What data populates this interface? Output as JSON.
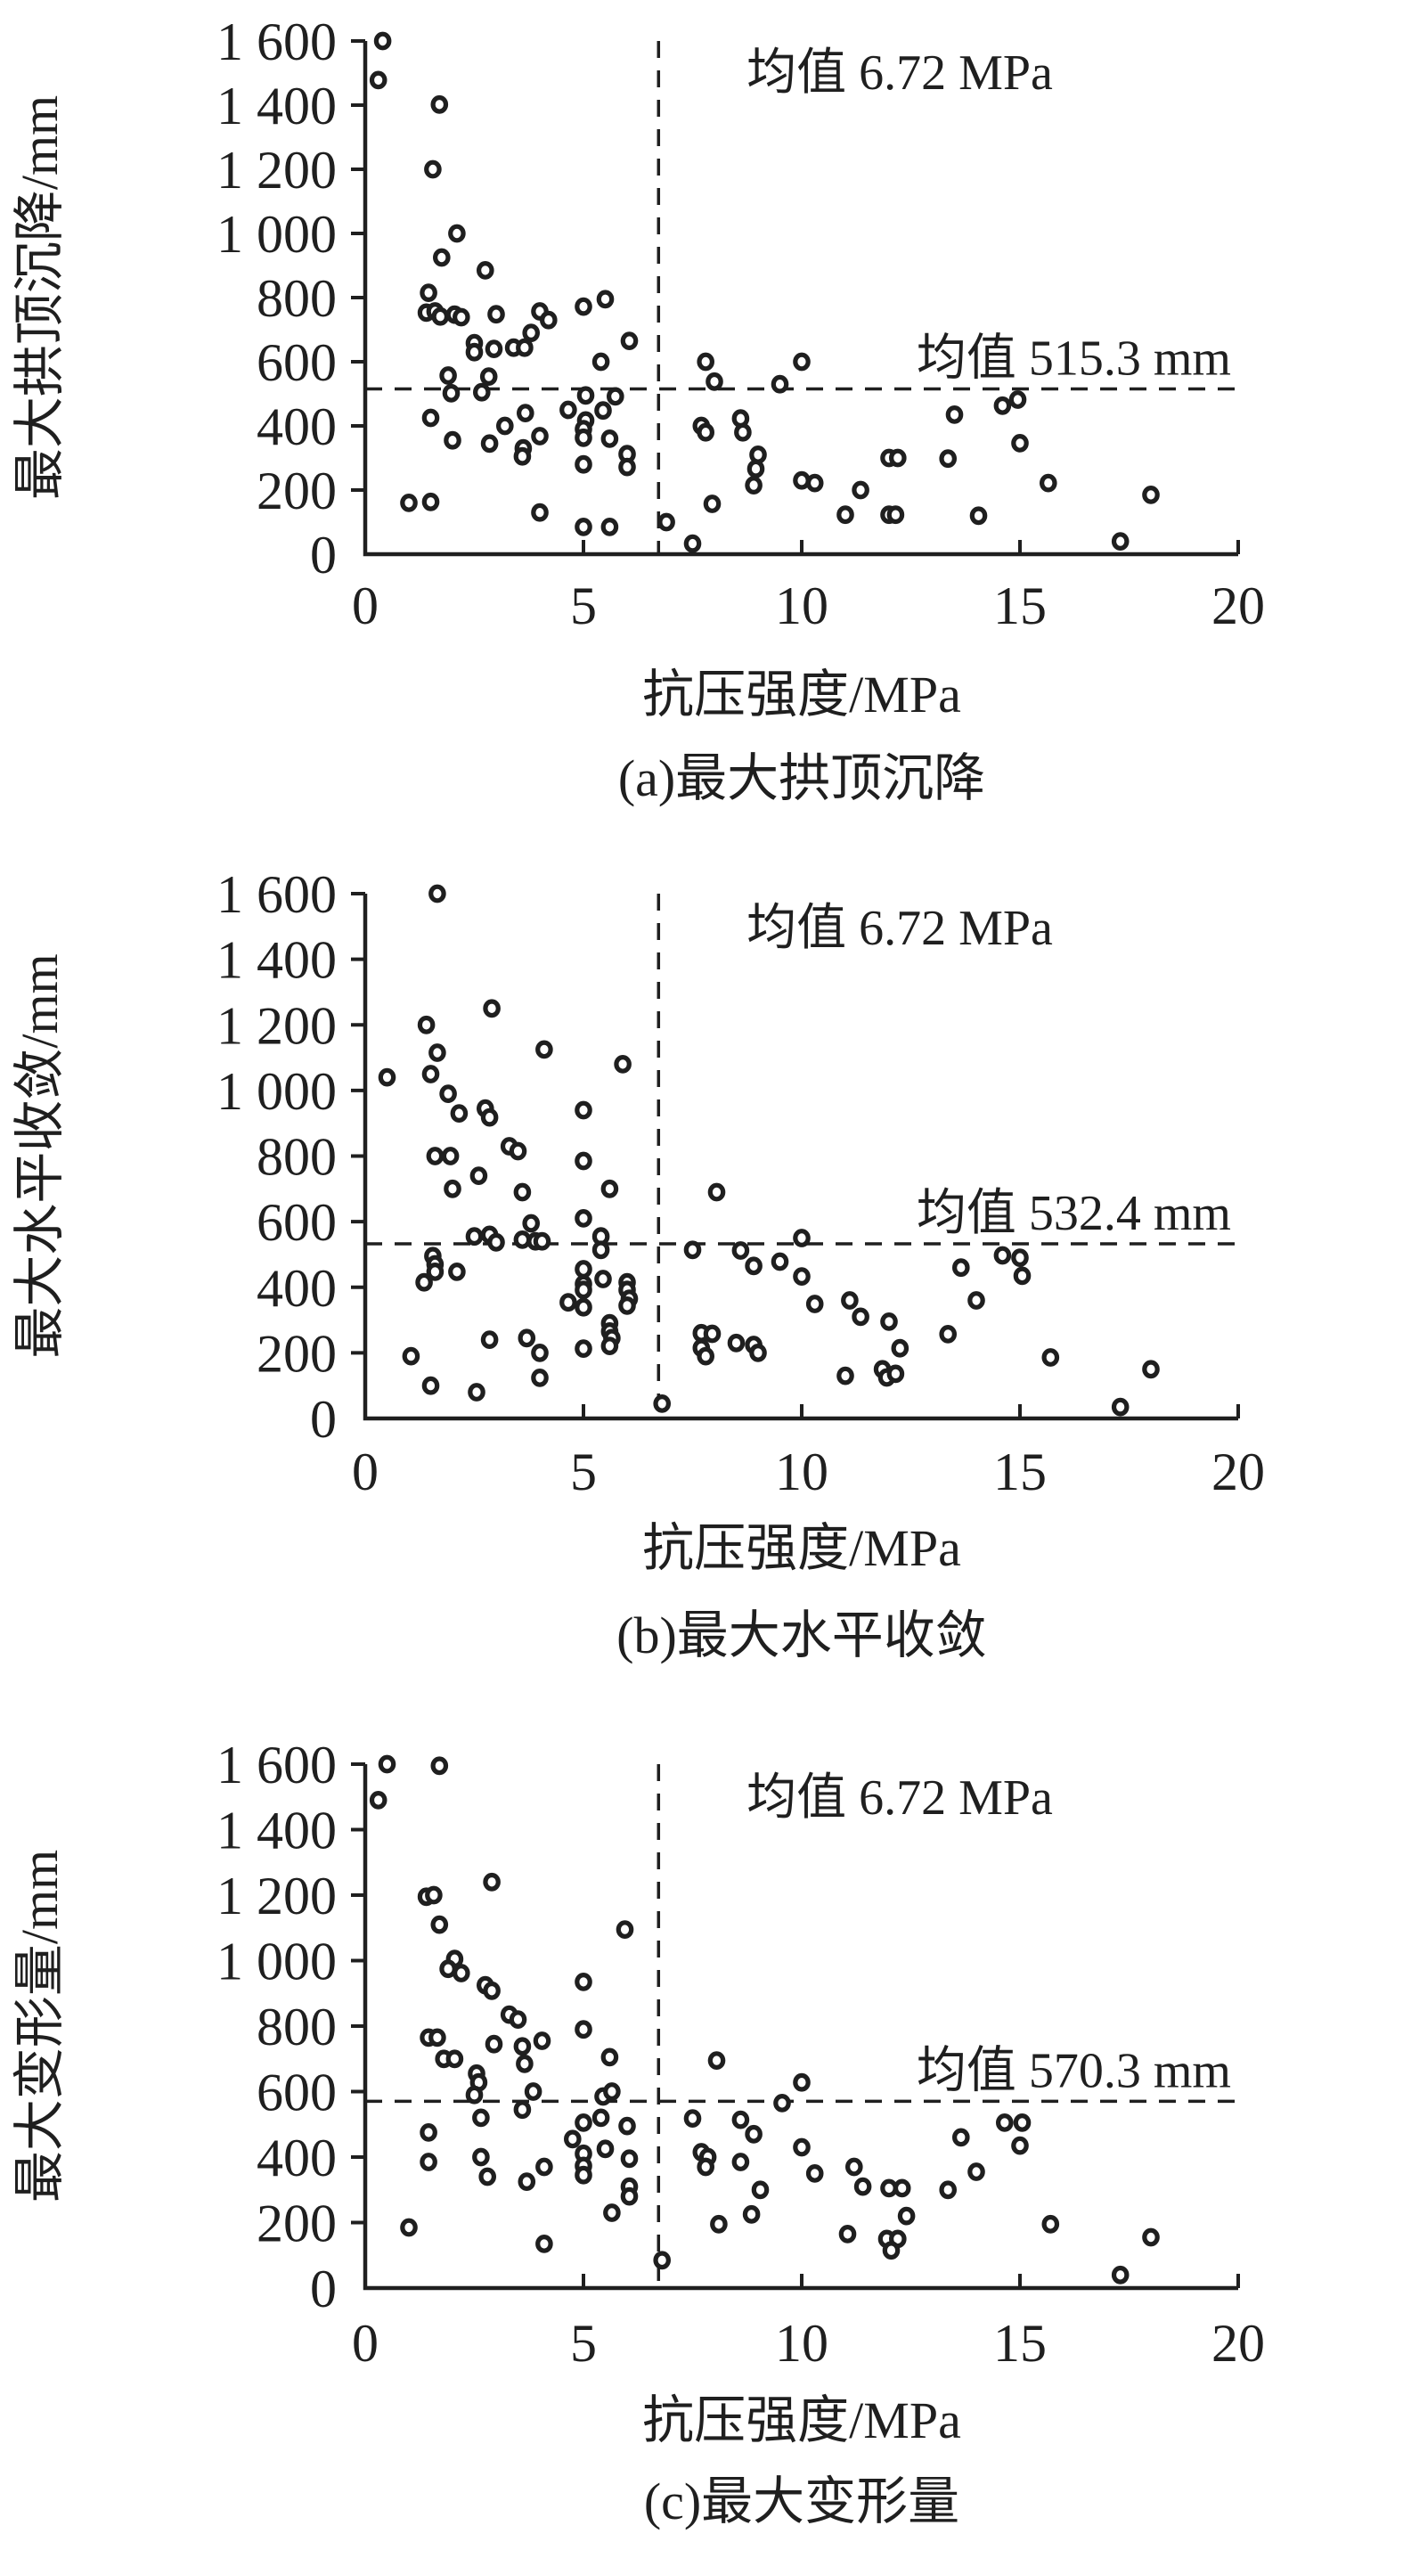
{
  "figure": {
    "background": "#ffffff",
    "ink_color": "#1f1f1f"
  },
  "chart_data": {
    "type": "scatter",
    "shared": {
      "xlabel": "抗压强度/MPa",
      "xlim": [
        0,
        20
      ],
      "ylim": [
        0,
        1600
      ],
      "xticks": [
        {
          "v": 0,
          "label": "0"
        },
        {
          "v": 5,
          "label": "5"
        },
        {
          "v": 10,
          "label": "10"
        },
        {
          "v": 15,
          "label": "15"
        },
        {
          "v": 20,
          "label": "20"
        }
      ],
      "yticks": [
        {
          "v": 0,
          "label": "0"
        },
        {
          "v": 200,
          "label": "200"
        },
        {
          "v": 400,
          "label": "400"
        },
        {
          "v": 600,
          "label": "600"
        },
        {
          "v": 800,
          "label": "800"
        },
        {
          "v": 1000,
          "label": "1 000"
        },
        {
          "v": 1200,
          "label": "1 200"
        },
        {
          "v": 1400,
          "label": "1 400"
        },
        {
          "v": 1600,
          "label": "1 600"
        }
      ],
      "mean_x": {
        "value": 6.72,
        "label": "均值 6.72 MPa"
      },
      "marker": "open-circle",
      "grid": false,
      "legend": "none"
    },
    "panels": [
      {
        "id": "a",
        "caption": "(a)最大拱顶沉降",
        "ylabel": "最大拱顶沉降/mm",
        "mean_y": {
          "value": 515.3,
          "label": "均值 515.3 mm"
        },
        "points": [
          [
            0.4,
            1600
          ],
          [
            0.3,
            1478
          ],
          [
            1.7,
            1402
          ],
          [
            1.55,
            1200
          ],
          [
            2.1,
            1000
          ],
          [
            1.75,
            925
          ],
          [
            2.75,
            885
          ],
          [
            1.45,
            815
          ],
          [
            1.4,
            753
          ],
          [
            1.6,
            757
          ],
          [
            1.72,
            741
          ],
          [
            2.05,
            747
          ],
          [
            2.2,
            739
          ],
          [
            3.0,
            748
          ],
          [
            4.0,
            757
          ],
          [
            4.2,
            730
          ],
          [
            5.0,
            772
          ],
          [
            5.5,
            795
          ],
          [
            3.8,
            690
          ],
          [
            2.5,
            658
          ],
          [
            2.5,
            630
          ],
          [
            2.95,
            640
          ],
          [
            3.4,
            644
          ],
          [
            3.65,
            644
          ],
          [
            5.4,
            600
          ],
          [
            6.05,
            665
          ],
          [
            1.9,
            557
          ],
          [
            2.83,
            554
          ],
          [
            1.97,
            502
          ],
          [
            2.67,
            505
          ],
          [
            5.05,
            495
          ],
          [
            5.73,
            492
          ],
          [
            1.5,
            425
          ],
          [
            3.2,
            400
          ],
          [
            3.67,
            440
          ],
          [
            4.0,
            368
          ],
          [
            2.0,
            355
          ],
          [
            2.85,
            345
          ],
          [
            3.62,
            330
          ],
          [
            3.6,
            305
          ],
          [
            4.65,
            450
          ],
          [
            5.45,
            448
          ],
          [
            5.05,
            417
          ],
          [
            5.0,
            390
          ],
          [
            5.0,
            363
          ],
          [
            5.6,
            360
          ],
          [
            6.0,
            312
          ],
          [
            5.0,
            280
          ],
          [
            6.0,
            272
          ],
          [
            1.0,
            160
          ],
          [
            1.5,
            163
          ],
          [
            4.0,
            130
          ],
          [
            5.0,
            85
          ],
          [
            5.6,
            85
          ],
          [
            6.9,
            100
          ],
          [
            7.5,
            33
          ],
          [
            7.8,
            600
          ],
          [
            8.0,
            538
          ],
          [
            9.5,
            530
          ],
          [
            10.0,
            600
          ],
          [
            7.7,
            400
          ],
          [
            7.8,
            380
          ],
          [
            8.6,
            423
          ],
          [
            8.65,
            380
          ],
          [
            9.0,
            310
          ],
          [
            8.95,
            266
          ],
          [
            8.9,
            215
          ],
          [
            7.95,
            157
          ],
          [
            10.0,
            230
          ],
          [
            10.3,
            222
          ],
          [
            11.0,
            123
          ],
          [
            11.35,
            200
          ],
          [
            12.0,
            300
          ],
          [
            12.2,
            300
          ],
          [
            12.0,
            123
          ],
          [
            12.15,
            123
          ],
          [
            14.05,
            120
          ],
          [
            13.35,
            298
          ],
          [
            13.5,
            435
          ],
          [
            14.6,
            463
          ],
          [
            14.95,
            482
          ],
          [
            15.0,
            346
          ],
          [
            15.65,
            222
          ],
          [
            17.3,
            40
          ],
          [
            18.0,
            185
          ]
        ]
      },
      {
        "id": "b",
        "caption": "(b)最大水平收敛",
        "ylabel": "最大水平收敛/mm",
        "mean_y": {
          "value": 532.4,
          "label": "均值 532.4 mm"
        },
        "points": [
          [
            1.65,
            1600
          ],
          [
            2.9,
            1250
          ],
          [
            1.4,
            1200
          ],
          [
            1.65,
            1115
          ],
          [
            4.1,
            1125
          ],
          [
            5.9,
            1080
          ],
          [
            0.5,
            1040
          ],
          [
            1.5,
            1050
          ],
          [
            1.9,
            990
          ],
          [
            2.15,
            930
          ],
          [
            2.75,
            945
          ],
          [
            2.85,
            918
          ],
          [
            5.0,
            940
          ],
          [
            3.3,
            830
          ],
          [
            3.5,
            815
          ],
          [
            1.6,
            800
          ],
          [
            1.95,
            800
          ],
          [
            5.0,
            785
          ],
          [
            2.6,
            740
          ],
          [
            2.0,
            700
          ],
          [
            3.6,
            690
          ],
          [
            5.6,
            700
          ],
          [
            5.0,
            610
          ],
          [
            3.8,
            595
          ],
          [
            2.5,
            555
          ],
          [
            2.85,
            560
          ],
          [
            3.0,
            537
          ],
          [
            3.6,
            545
          ],
          [
            3.9,
            540
          ],
          [
            4.05,
            540
          ],
          [
            5.4,
            555
          ],
          [
            5.4,
            514
          ],
          [
            1.55,
            495
          ],
          [
            1.6,
            470
          ],
          [
            1.6,
            447
          ],
          [
            2.1,
            447
          ],
          [
            1.35,
            415
          ],
          [
            5.0,
            455
          ],
          [
            5.0,
            410
          ],
          [
            5.0,
            392
          ],
          [
            5.45,
            425
          ],
          [
            6.0,
            415
          ],
          [
            6.0,
            392
          ],
          [
            6.05,
            365
          ],
          [
            6.0,
            344
          ],
          [
            4.65,
            354
          ],
          [
            5.0,
            339
          ],
          [
            5.6,
            290
          ],
          [
            5.6,
            265
          ],
          [
            5.65,
            245
          ],
          [
            5.6,
            221
          ],
          [
            5.0,
            213
          ],
          [
            2.85,
            240
          ],
          [
            3.7,
            245
          ],
          [
            4.0,
            200
          ],
          [
            4.0,
            124
          ],
          [
            1.05,
            190
          ],
          [
            1.5,
            100
          ],
          [
            2.55,
            80
          ],
          [
            6.8,
            45
          ],
          [
            8.05,
            690
          ],
          [
            7.5,
            514
          ],
          [
            8.6,
            512
          ],
          [
            10.0,
            550
          ],
          [
            8.9,
            465
          ],
          [
            9.5,
            478
          ],
          [
            10.0,
            433
          ],
          [
            7.7,
            260
          ],
          [
            7.95,
            258
          ],
          [
            7.7,
            215
          ],
          [
            7.8,
            190
          ],
          [
            8.5,
            230
          ],
          [
            8.9,
            224
          ],
          [
            9.0,
            200
          ],
          [
            10.3,
            349
          ],
          [
            11.1,
            360
          ],
          [
            11.35,
            310
          ],
          [
            12.0,
            295
          ],
          [
            13.35,
            257
          ],
          [
            13.65,
            460
          ],
          [
            14.0,
            360
          ],
          [
            14.6,
            497
          ],
          [
            15.0,
            490
          ],
          [
            15.05,
            435
          ],
          [
            12.25,
            214
          ],
          [
            11.0,
            130
          ],
          [
            11.85,
            150
          ],
          [
            11.95,
            125
          ],
          [
            12.15,
            136
          ],
          [
            15.7,
            186
          ],
          [
            17.3,
            35
          ],
          [
            18.0,
            150
          ]
        ]
      },
      {
        "id": "c",
        "caption": "(c)最大变形量",
        "ylabel": "最大变形量/mm",
        "mean_y": {
          "value": 570.3,
          "label": "均值 570.3 mm"
        },
        "points": [
          [
            0.5,
            1600
          ],
          [
            1.7,
            1595
          ],
          [
            0.3,
            1490
          ],
          [
            2.9,
            1240
          ],
          [
            1.4,
            1195
          ],
          [
            1.57,
            1200
          ],
          [
            1.7,
            1110
          ],
          [
            5.95,
            1095
          ],
          [
            2.05,
            1005
          ],
          [
            1.9,
            975
          ],
          [
            2.2,
            962
          ],
          [
            2.75,
            925
          ],
          [
            2.9,
            908
          ],
          [
            5.0,
            935
          ],
          [
            3.3,
            835
          ],
          [
            3.5,
            820
          ],
          [
            5.0,
            790
          ],
          [
            1.45,
            765
          ],
          [
            1.65,
            765
          ],
          [
            1.8,
            700
          ],
          [
            2.05,
            700
          ],
          [
            2.95,
            745
          ],
          [
            3.6,
            738
          ],
          [
            4.05,
            755
          ],
          [
            3.65,
            685
          ],
          [
            5.6,
            705
          ],
          [
            2.55,
            655
          ],
          [
            2.6,
            628
          ],
          [
            3.85,
            600
          ],
          [
            3.6,
            545
          ],
          [
            2.65,
            520
          ],
          [
            5.45,
            585
          ],
          [
            5.65,
            600
          ],
          [
            5.4,
            520
          ],
          [
            2.5,
            590
          ],
          [
            1.45,
            475
          ],
          [
            1.45,
            385
          ],
          [
            2.65,
            400
          ],
          [
            2.8,
            340
          ],
          [
            3.7,
            325
          ],
          [
            4.1,
            370
          ],
          [
            4.75,
            455
          ],
          [
            5.0,
            505
          ],
          [
            5.0,
            410
          ],
          [
            5.0,
            373
          ],
          [
            5.0,
            345
          ],
          [
            5.5,
            425
          ],
          [
            6.0,
            495
          ],
          [
            6.05,
            395
          ],
          [
            6.05,
            310
          ],
          [
            6.05,
            280
          ],
          [
            5.65,
            230
          ],
          [
            4.1,
            135
          ],
          [
            1.0,
            185
          ],
          [
            6.8,
            85
          ],
          [
            8.05,
            695
          ],
          [
            7.5,
            518
          ],
          [
            8.6,
            514
          ],
          [
            9.55,
            565
          ],
          [
            10.0,
            628
          ],
          [
            8.9,
            470
          ],
          [
            7.7,
            415
          ],
          [
            7.85,
            400
          ],
          [
            7.8,
            370
          ],
          [
            8.6,
            385
          ],
          [
            9.05,
            300
          ],
          [
            8.85,
            225
          ],
          [
            8.1,
            195
          ],
          [
            10.0,
            430
          ],
          [
            10.3,
            350
          ],
          [
            11.2,
            370
          ],
          [
            11.4,
            310
          ],
          [
            12.0,
            305
          ],
          [
            12.3,
            305
          ],
          [
            11.05,
            165
          ],
          [
            11.95,
            150
          ],
          [
            12.2,
            150
          ],
          [
            12.05,
            115
          ],
          [
            12.4,
            220
          ],
          [
            13.35,
            300
          ],
          [
            13.65,
            460
          ],
          [
            14.0,
            355
          ],
          [
            14.65,
            505
          ],
          [
            15.05,
            505
          ],
          [
            15.0,
            435
          ],
          [
            15.7,
            195
          ],
          [
            17.3,
            40
          ],
          [
            18.0,
            155
          ]
        ]
      }
    ]
  }
}
